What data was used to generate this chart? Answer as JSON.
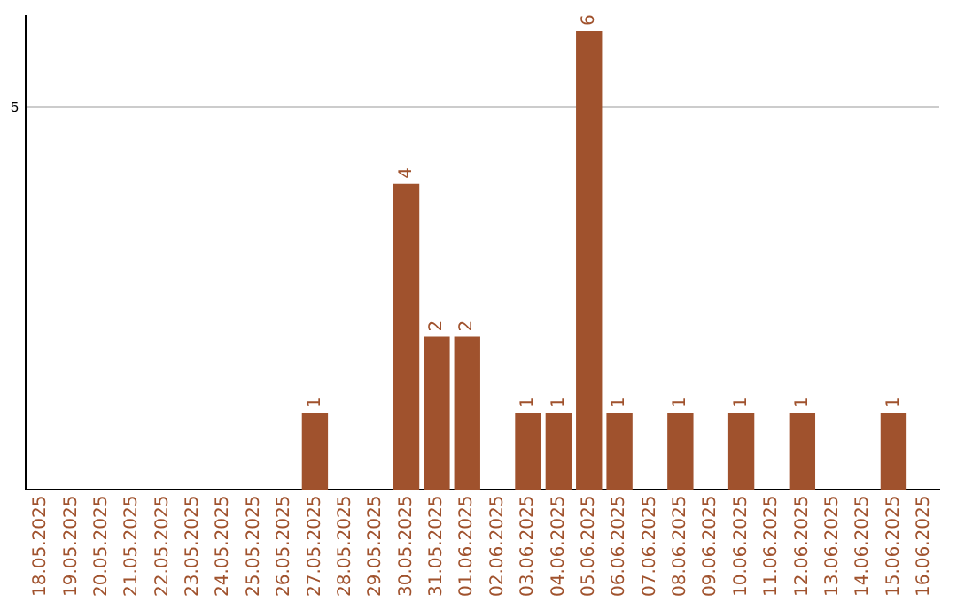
{
  "chart_data": {
    "type": "bar",
    "categories": [
      "18.05.2025",
      "19.05.2025",
      "20.05.2025",
      "21.05.2025",
      "22.05.2025",
      "23.05.2025",
      "24.05.2025",
      "25.05.2025",
      "26.05.2025",
      "27.05.2025",
      "28.05.2025",
      "29.05.2025",
      "30.05.2025",
      "31.05.2025",
      "01.06.2025",
      "02.06.2025",
      "03.06.2025",
      "04.06.2025",
      "05.06.2025",
      "06.06.2025",
      "07.06.2025",
      "08.06.2025",
      "09.06.2025",
      "10.06.2025",
      "11.06.2025",
      "12.06.2025",
      "13.06.2025",
      "14.06.2025",
      "15.06.2025",
      "16.06.2025"
    ],
    "values": [
      0,
      0,
      0,
      0,
      0,
      0,
      0,
      0,
      0,
      1,
      0,
      0,
      4,
      2,
      2,
      0,
      1,
      1,
      6,
      1,
      0,
      1,
      0,
      1,
      0,
      1,
      0,
      0,
      1,
      0
    ],
    "value_labels": [
      null,
      null,
      null,
      null,
      null,
      null,
      null,
      null,
      null,
      "1",
      null,
      null,
      "4",
      "2",
      "2",
      null,
      "1",
      "1",
      "6",
      "1",
      null,
      "1",
      null,
      "1",
      null,
      "1",
      null,
      null,
      "1",
      null
    ],
    "color": "#a0522d",
    "ylim": [
      0,
      6.2
    ],
    "yticks": [
      5
    ],
    "grid": "y",
    "legend": false
  }
}
